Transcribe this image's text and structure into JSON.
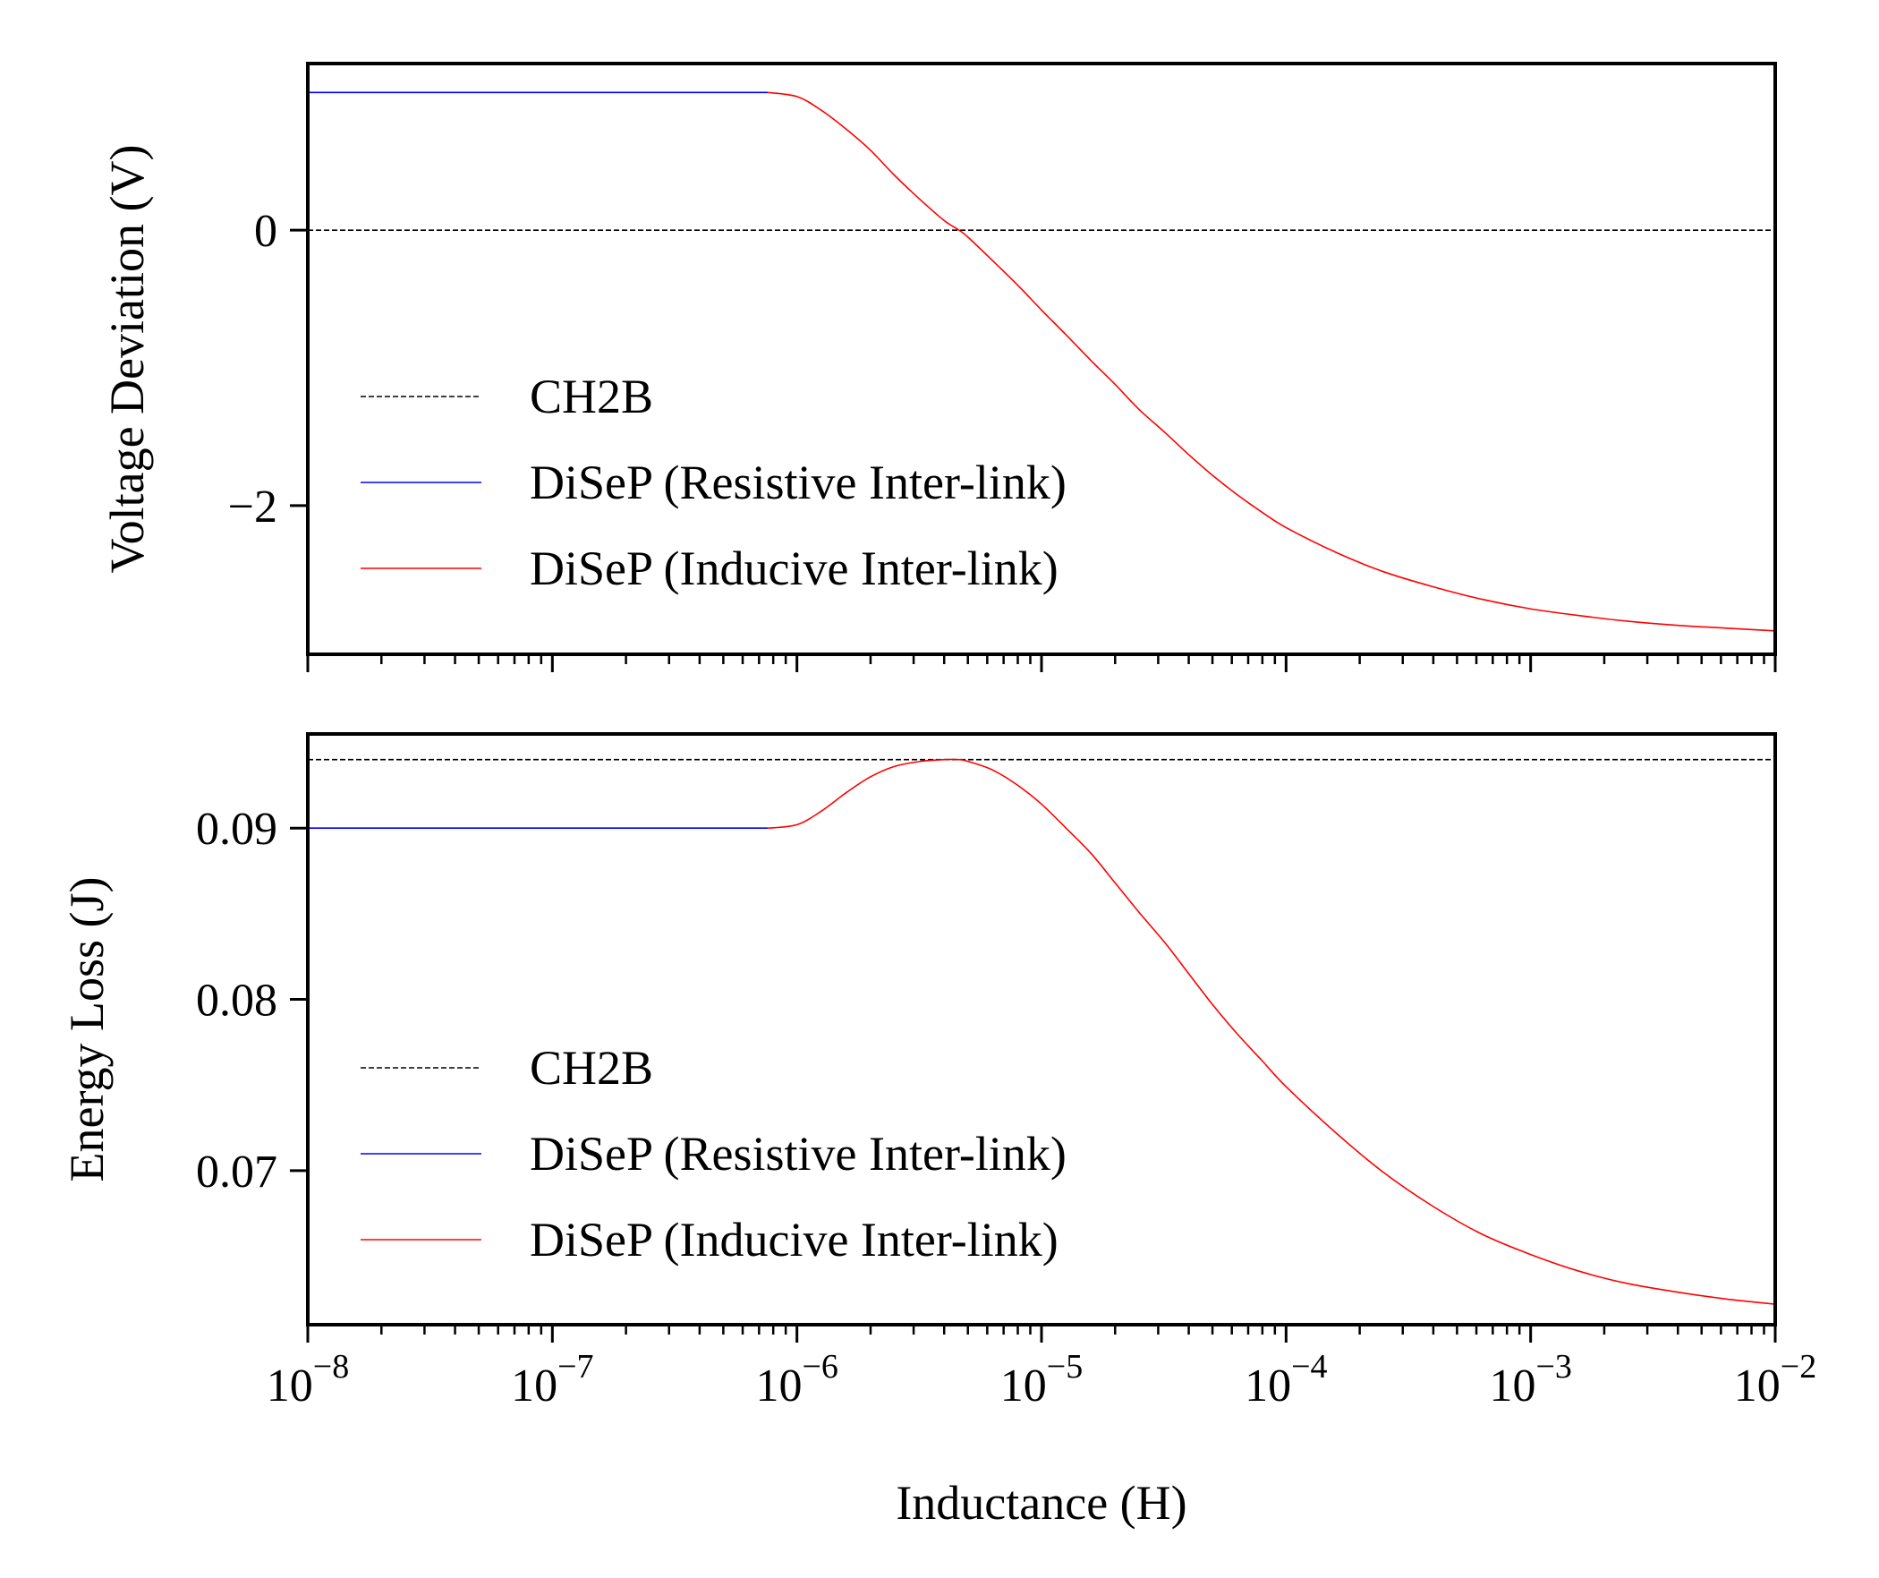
{
  "chart_data": [
    {
      "type": "line",
      "panel": "top",
      "title": "",
      "xlabel": "",
      "ylabel": "Voltage Deviation (V)",
      "xscale": "log",
      "xlim": [
        1e-08,
        0.01
      ],
      "ylim": [
        -3.08,
        1.21
      ],
      "yticks": [
        0,
        -2
      ],
      "ytick_labels": [
        "0",
        "−2"
      ],
      "grid": false,
      "legend_position": "lower-left",
      "legend": [
        "CH2B",
        "DiSeP (Resistive Inter-link)",
        "DiSeP (Inducive Inter-link)"
      ],
      "series": [
        {
          "name": "CH2B",
          "kind": "constant",
          "value": 0.0,
          "color": "#000000",
          "style": "dashed"
        },
        {
          "name": "DiSeP (Resistive Inter-link)",
          "color": "#0000ff",
          "style": "solid",
          "x": [
            1e-08,
            7.6e-07
          ],
          "y": [
            1.0,
            1.0
          ]
        },
        {
          "name": "DiSeP (Inducive Inter-link)",
          "color": "#ff0000",
          "style": "solid",
          "x": [
            7.6e-07,
            1e-06,
            1.26e-06,
            1.6e-06,
            2e-06,
            2.5e-06,
            3.2e-06,
            4e-06,
            4.6e-06,
            5e-06,
            6.3e-06,
            8e-06,
            1e-05,
            1.26e-05,
            1.6e-05,
            2e-05,
            2.5e-05,
            3.2e-05,
            4e-05,
            5e-05,
            6.3e-05,
            8e-05,
            0.0001,
            0.00016,
            0.00025,
            0.0004,
            0.00063,
            0.001,
            0.0016,
            0.0025,
            0.004,
            0.0063,
            0.01
          ],
          "y": [
            1.0,
            0.97,
            0.87,
            0.73,
            0.58,
            0.4,
            0.22,
            0.07,
            0.0,
            -0.05,
            -0.22,
            -0.4,
            -0.58,
            -0.76,
            -0.95,
            -1.12,
            -1.3,
            -1.47,
            -1.63,
            -1.78,
            -1.92,
            -2.05,
            -2.16,
            -2.34,
            -2.48,
            -2.59,
            -2.68,
            -2.75,
            -2.8,
            -2.84,
            -2.87,
            -2.89,
            -2.91
          ]
        }
      ]
    },
    {
      "type": "line",
      "panel": "bottom",
      "title": "",
      "xlabel": "Inductance (H)",
      "ylabel": "Energy Loss (J)",
      "xscale": "log",
      "xlim": [
        1e-08,
        0.01
      ],
      "ylim": [
        0.061,
        0.0955
      ],
      "xticks": [
        1e-08,
        1e-07,
        1e-06,
        1e-05,
        0.0001,
        0.001,
        0.01
      ],
      "xtick_bases": [
        "10",
        "10",
        "10",
        "10",
        "10",
        "10",
        "10"
      ],
      "xtick_exponents": [
        "−8",
        "−7",
        "−6",
        "−5",
        "−4",
        "−3",
        "−2"
      ],
      "yticks": [
        0.09,
        0.08,
        0.07
      ],
      "ytick_labels": [
        "0.09",
        "0.08",
        "0.07"
      ],
      "grid": false,
      "legend_position": "lower-left",
      "legend": [
        "CH2B",
        "DiSeP (Resistive Inter-link)",
        "DiSeP (Inducive Inter-link)"
      ],
      "series": [
        {
          "name": "CH2B",
          "kind": "constant",
          "value": 0.094,
          "color": "#000000",
          "style": "dashed"
        },
        {
          "name": "DiSeP (Resistive Inter-link)",
          "color": "#0000ff",
          "style": "solid",
          "x": [
            1e-08,
            7.6e-07
          ],
          "y": [
            0.09,
            0.09
          ]
        },
        {
          "name": "DiSeP (Inducive Inter-link)",
          "color": "#ff0000",
          "style": "solid",
          "x": [
            7.6e-07,
            1e-06,
            1.26e-06,
            1.6e-06,
            2e-06,
            2.5e-06,
            3.2e-06,
            4e-06,
            4.6e-06,
            5e-06,
            6.3e-06,
            8e-06,
            1e-05,
            1.26e-05,
            1.6e-05,
            2e-05,
            2.5e-05,
            3.2e-05,
            4e-05,
            5e-05,
            6.3e-05,
            8e-05,
            0.0001,
            0.00016,
            0.00025,
            0.0004,
            0.00063,
            0.001,
            0.0016,
            0.0025,
            0.004,
            0.0063,
            0.01
          ],
          "y": [
            0.09,
            0.0902,
            0.091,
            0.0921,
            0.093,
            0.0936,
            0.0939,
            0.094,
            0.094,
            0.0939,
            0.0934,
            0.0925,
            0.0914,
            0.09,
            0.0885,
            0.0868,
            0.0851,
            0.0833,
            0.0815,
            0.0797,
            0.078,
            0.0764,
            0.0749,
            0.0722,
            0.0699,
            0.0679,
            0.0663,
            0.0651,
            0.0641,
            0.0634,
            0.0629,
            0.0625,
            0.0622
          ]
        }
      ]
    }
  ]
}
